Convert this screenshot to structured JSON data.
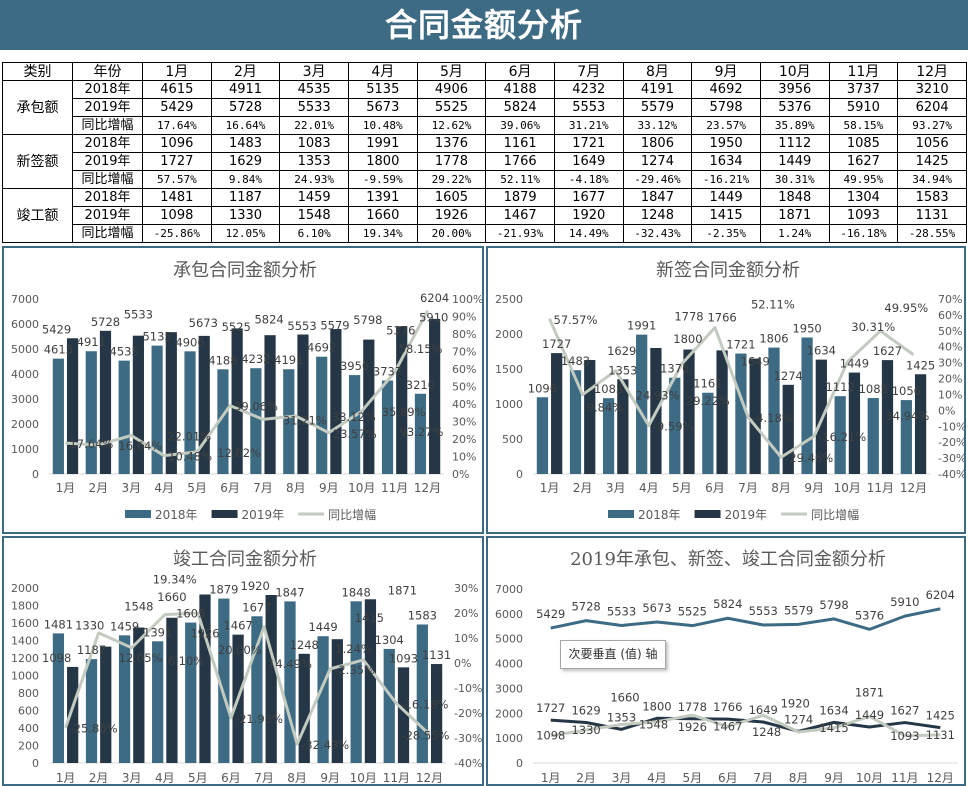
{
  "title": "合同金额分析",
  "table": {
    "header": [
      "类别",
      "年份",
      "1月",
      "2月",
      "3月",
      "4月",
      "5月",
      "6月",
      "7月",
      "8月",
      "9月",
      "10月",
      "11月",
      "12月"
    ],
    "groups": [
      {
        "category": "承包额",
        "rows": [
          {
            "label": "2018年",
            "values": [
              "4615",
              "4911",
              "4535",
              "5135",
              "4906",
              "4188",
              "4232",
              "4191",
              "4692",
              "3956",
              "3737",
              "3210"
            ]
          },
          {
            "label": "2019年",
            "values": [
              "5429",
              "5728",
              "5533",
              "5673",
              "5525",
              "5824",
              "5553",
              "5579",
              "5798",
              "5376",
              "5910",
              "6204"
            ]
          },
          {
            "label": "同比增幅",
            "values": [
              "17.64%",
              "16.64%",
              "22.01%",
              "10.48%",
              "12.62%",
              "39.06%",
              "31.21%",
              "33.12%",
              "23.57%",
              "35.89%",
              "58.15%",
              "93.27%"
            ]
          }
        ]
      },
      {
        "category": "新签额",
        "rows": [
          {
            "label": "2018年",
            "values": [
              "1096",
              "1483",
              "1083",
              "1991",
              "1376",
              "1161",
              "1721",
              "1806",
              "1950",
              "1112",
              "1085",
              "1056"
            ]
          },
          {
            "label": "2019年",
            "values": [
              "1727",
              "1629",
              "1353",
              "1800",
              "1778",
              "1766",
              "1649",
              "1274",
              "1634",
              "1449",
              "1627",
              "1425"
            ]
          },
          {
            "label": "同比增幅",
            "values": [
              "57.57%",
              "9.84%",
              "24.93%",
              "-9.59%",
              "29.22%",
              "52.11%",
              "-4.18%",
              "-29.46%",
              "-16.21%",
              "30.31%",
              "49.95%",
              "34.94%"
            ]
          }
        ]
      },
      {
        "category": "竣工额",
        "rows": [
          {
            "label": "2018年",
            "values": [
              "1481",
              "1187",
              "1459",
              "1391",
              "1605",
              "1879",
              "1677",
              "1847",
              "1449",
              "1848",
              "1304",
              "1583"
            ]
          },
          {
            "label": "2019年",
            "values": [
              "1098",
              "1330",
              "1548",
              "1660",
              "1926",
              "1467",
              "1920",
              "1248",
              "1415",
              "1871",
              "1093",
              "1131"
            ]
          },
          {
            "label": "同比增幅",
            "values": [
              "-25.86%",
              "12.05%",
              "6.10%",
              "19.34%",
              "20.00%",
              "-21.93%",
              "14.49%",
              "-32.43%",
              "-2.35%",
              "1.24%",
              "-16.18%",
              "-28.55%"
            ]
          }
        ]
      }
    ]
  },
  "tooltip": "次要垂直 (值) 轴",
  "colors": {
    "bar2018": "#3d6b84",
    "bar2019": "#253746",
    "line": "#c3cbc1",
    "header": "#3d6b84"
  },
  "chart_data": [
    {
      "type": "bar+line",
      "title": "承包合同金额分析",
      "categories": [
        "1月",
        "2月",
        "3月",
        "4月",
        "5月",
        "6月",
        "7月",
        "8月",
        "9月",
        "10月",
        "11月",
        "12月"
      ],
      "series": [
        {
          "name": "2018年",
          "kind": "bar",
          "axis": "primary",
          "color": "#3d6b84",
          "values": [
            4615,
            4911,
            4535,
            5135,
            4906,
            4188,
            4232,
            4191,
            4692,
            3956,
            3737,
            3210
          ]
        },
        {
          "name": "2019年",
          "kind": "bar",
          "axis": "primary",
          "color": "#253746",
          "values": [
            5429,
            5728,
            5533,
            5673,
            5525,
            5824,
            5553,
            5579,
            5798,
            5376,
            5910,
            6204
          ]
        },
        {
          "name": "同比增幅",
          "kind": "line",
          "axis": "secondary",
          "color": "#c3cbc1",
          "unit": "%",
          "values": [
            17.64,
            16.64,
            22.01,
            10.48,
            12.62,
            39.06,
            31.21,
            33.12,
            23.57,
            35.89,
            58.15,
            93.27
          ]
        }
      ],
      "ylim": [
        0,
        7000
      ],
      "ystep": 1000,
      "y2lim": [
        0,
        100
      ],
      "y2step": 10,
      "legend": "bottom",
      "grid": false
    },
    {
      "type": "bar+line",
      "title": "新签合同金额分析",
      "categories": [
        "1月",
        "2月",
        "3月",
        "4月",
        "5月",
        "6月",
        "7月",
        "8月",
        "9月",
        "10月",
        "11月",
        "12月"
      ],
      "series": [
        {
          "name": "2018年",
          "kind": "bar",
          "axis": "primary",
          "color": "#3d6b84",
          "values": [
            1096,
            1483,
            1083,
            1991,
            1376,
            1161,
            1721,
            1806,
            1950,
            1112,
            1085,
            1056
          ]
        },
        {
          "name": "2019年",
          "kind": "bar",
          "axis": "primary",
          "color": "#253746",
          "values": [
            1727,
            1629,
            1353,
            1800,
            1778,
            1766,
            1649,
            1274,
            1634,
            1449,
            1627,
            1425
          ]
        },
        {
          "name": "同比增幅",
          "kind": "line",
          "axis": "secondary",
          "color": "#c3cbc1",
          "unit": "%",
          "values": [
            57.57,
            9.84,
            24.93,
            -9.59,
            29.22,
            52.11,
            -4.18,
            -29.46,
            -16.21,
            30.31,
            49.95,
            34.94
          ]
        }
      ],
      "ylim": [
        0,
        2500
      ],
      "ystep": 500,
      "y2lim": [
        -40,
        70
      ],
      "y2step": 10,
      "legend": "bottom",
      "grid": false
    },
    {
      "type": "bar+line",
      "title": "竣工合同金额分析",
      "categories": [
        "1月",
        "2月",
        "3月",
        "4月",
        "5月",
        "6月",
        "7月",
        "8月",
        "9月",
        "10月",
        "11月",
        "12月"
      ],
      "series": [
        {
          "name": "2018年",
          "kind": "bar",
          "axis": "primary",
          "color": "#3d6b84",
          "values": [
            1481,
            1187,
            1459,
            1391,
            1605,
            1879,
            1677,
            1847,
            1449,
            1848,
            1304,
            1583
          ]
        },
        {
          "name": "2019年",
          "kind": "bar",
          "axis": "primary",
          "color": "#253746",
          "values": [
            1098,
            1330,
            1548,
            1660,
            1926,
            1467,
            1920,
            1248,
            1415,
            1871,
            1093,
            1131
          ]
        },
        {
          "kind": "line",
          "axis": "secondary",
          "color": "#c3cbc1",
          "unit": "%",
          "values": [
            -25.86,
            12.05,
            6.1,
            19.34,
            20.0,
            -21.93,
            14.49,
            -32.43,
            -2.35,
            1.24,
            -16.18,
            -28.55
          ]
        }
      ],
      "ylim": [
        0,
        2000
      ],
      "ystep": 200,
      "y2lim": [
        -40,
        30
      ],
      "y2step": 10,
      "grid": false
    },
    {
      "type": "line",
      "title": "2019年承包、新签、竣工合同金额分析",
      "categories": [
        "1月",
        "2月",
        "3月",
        "4月",
        "5月",
        "6月",
        "7月",
        "8月",
        "9月",
        "10月",
        "11月",
        "12月"
      ],
      "series": [
        {
          "kind": "line",
          "axis": "primary",
          "color": "#3d6b84",
          "values": [
            5429,
            5728,
            5533,
            5673,
            5525,
            5824,
            5553,
            5579,
            5798,
            5376,
            5910,
            6204
          ]
        },
        {
          "kind": "line",
          "axis": "primary",
          "color": "#253746",
          "values": [
            1727,
            1629,
            1353,
            1800,
            1778,
            1766,
            1649,
            1274,
            1634,
            1449,
            1627,
            1425
          ]
        },
        {
          "kind": "line",
          "axis": "primary",
          "color": "#c3cbc1",
          "values": [
            1098,
            1330,
            1548,
            1660,
            1926,
            1467,
            1920,
            1248,
            1415,
            1871,
            1093,
            1131
          ]
        }
      ],
      "ylim": [
        0,
        7000
      ],
      "ystep": 1000,
      "grid": false
    }
  ]
}
